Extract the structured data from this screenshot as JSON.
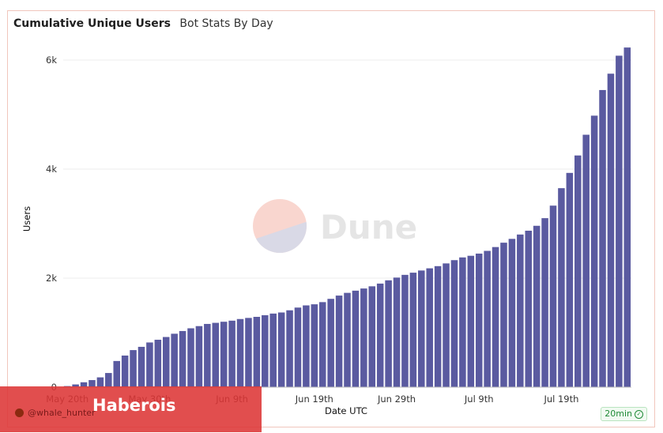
{
  "header": {
    "title": "Cumulative Unique Users",
    "subtitle": "Bot Stats By Day"
  },
  "watermark": {
    "text": "Dune"
  },
  "badge": {
    "label": "20min"
  },
  "overlay": {
    "handle": "@whale_hunter",
    "brand": "Haberois"
  },
  "colors": {
    "bar": "#5a5aa0",
    "grid": "#ececec",
    "accent_border": "#f1c6bc"
  },
  "chart_data": {
    "type": "bar",
    "title": "Cumulative Unique Users",
    "subtitle": "Bot Stats By Day",
    "xlabel": "Date UTC",
    "ylabel": "Users",
    "ylim": [
      0,
      6500
    ],
    "yticks": [
      0,
      2000,
      4000,
      6000
    ],
    "ytick_labels": [
      "0",
      "2k",
      "4k",
      "6k"
    ],
    "xtick_labels": [
      {
        "index": 0,
        "label": "May 20th"
      },
      {
        "index": 10,
        "label": "May 30th"
      },
      {
        "index": 20,
        "label": "Jun 9th"
      },
      {
        "index": 30,
        "label": "Jun 19th"
      },
      {
        "index": 40,
        "label": "Jun 29th"
      },
      {
        "index": 50,
        "label": "Jul 9th"
      },
      {
        "index": 60,
        "label": "Jul 19th"
      }
    ],
    "grid": true,
    "legend": "none",
    "values": [
      20,
      50,
      90,
      130,
      180,
      260,
      480,
      580,
      680,
      740,
      820,
      870,
      920,
      980,
      1030,
      1080,
      1120,
      1160,
      1180,
      1200,
      1220,
      1250,
      1270,
      1290,
      1320,
      1350,
      1370,
      1410,
      1460,
      1500,
      1520,
      1560,
      1620,
      1680,
      1730,
      1770,
      1810,
      1850,
      1900,
      1960,
      2010,
      2060,
      2100,
      2140,
      2180,
      2220,
      2270,
      2330,
      2380,
      2410,
      2450,
      2500,
      2570,
      2650,
      2720,
      2800,
      2870,
      2960,
      3100,
      3330,
      3650,
      3930,
      4250,
      4630,
      4980,
      5450,
      5750,
      6080,
      6230
    ]
  }
}
